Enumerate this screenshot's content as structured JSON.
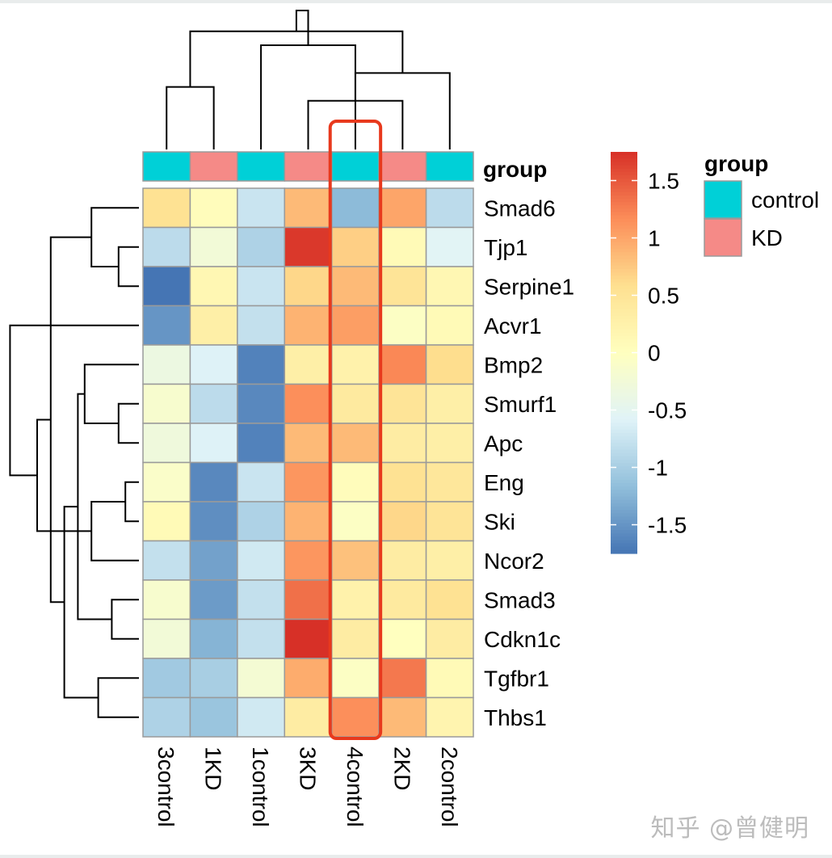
{
  "chart_data": {
    "type": "heatmap",
    "columns": [
      "3control",
      "1KD",
      "1control",
      "3KD",
      "4control",
      "2KD",
      "2control"
    ],
    "rows": [
      "Smad6",
      "Tjp1",
      "Serpine1",
      "Acvr1",
      "Bmp2",
      "Smurf1",
      "Apc",
      "Eng",
      "Ski",
      "Ncor2",
      "Smad3",
      "Cdkn1c",
      "Tgfbr1",
      "Thbs1"
    ],
    "values": [
      [
        0.55,
        0.05,
        -0.75,
        0.85,
        -1.2,
        1.0,
        -0.85
      ],
      [
        -0.85,
        -0.25,
        -0.95,
        1.7,
        0.7,
        0.1,
        -0.55
      ],
      [
        -1.8,
        0.15,
        -0.75,
        0.65,
        0.85,
        0.5,
        0.15
      ],
      [
        -1.5,
        0.3,
        -0.8,
        0.9,
        1.05,
        -0.05,
        0.1
      ],
      [
        -0.35,
        -0.6,
        -1.65,
        0.3,
        0.25,
        1.2,
        0.6
      ],
      [
        -0.15,
        -0.85,
        -1.6,
        1.15,
        0.4,
        0.5,
        0.3
      ],
      [
        -0.3,
        -0.6,
        -1.65,
        0.85,
        0.85,
        0.35,
        0.3
      ],
      [
        -0.1,
        -1.6,
        -0.75,
        1.1,
        0.05,
        0.55,
        0.45
      ],
      [
        0.1,
        -1.55,
        -0.95,
        0.9,
        -0.05,
        0.65,
        0.5
      ],
      [
        -0.8,
        -1.4,
        -0.7,
        1.1,
        0.8,
        0.35,
        0.3
      ],
      [
        -0.15,
        -1.45,
        -0.8,
        1.35,
        0.25,
        0.4,
        0.55
      ],
      [
        -0.25,
        -1.25,
        -0.8,
        1.75,
        0.35,
        0.0,
        0.35
      ],
      [
        -1.05,
        -1.0,
        -0.2,
        0.95,
        -0.05,
        1.3,
        0.1
      ],
      [
        -0.95,
        -1.1,
        -0.7,
        0.35,
        1.15,
        0.85,
        0.2
      ]
    ],
    "annotation": {
      "title": "group",
      "column_groups": [
        "control",
        "KD",
        "control",
        "KD",
        "control",
        "KD",
        "control"
      ]
    },
    "legend_group": {
      "title": "group",
      "items": [
        {
          "label": "control",
          "color": "#00d0d7"
        },
        {
          "label": "KD",
          "color": "#f58a87"
        }
      ]
    },
    "colorbar": {
      "range": [
        -1.75,
        1.75
      ],
      "ticks": [
        1.5,
        1,
        0.5,
        0,
        -0.5,
        -1,
        -1.5
      ],
      "tick_labels": [
        "1.5",
        "1",
        "0.5",
        "0",
        "-0.5",
        "-1",
        "-1.5"
      ],
      "palette": [
        "#4575b4",
        "#91bfdb",
        "#e0f3f8",
        "#ffffbf",
        "#fee090",
        "#fc8d59",
        "#d73027"
      ]
    },
    "highlight_column": "4control",
    "highlight_color": "#e8391d",
    "col_dendrogram": {
      "merges": [
        [
          4,
          6,
          0.35
        ],
        [
          5,
          7,
          0.55
        ],
        [
          1,
          2,
          0.45
        ],
        [
          8,
          3,
          0.75
        ],
        [
          9,
          10,
          0.85
        ],
        [
          11,
          12,
          1.0
        ]
      ]
    },
    "row_dendrogram": {
      "merges": [
        [
          2,
          3,
          0.15
        ],
        [
          6,
          7,
          0.15
        ],
        [
          8,
          9,
          0.1
        ],
        [
          11,
          12,
          0.2
        ],
        [
          13,
          14,
          0.3
        ],
        [
          1,
          15,
          0.35
        ],
        [
          5,
          16,
          0.4
        ],
        [
          17,
          10,
          0.35
        ],
        [
          21,
          18,
          0.45
        ],
        [
          23,
          19,
          0.55
        ],
        [
          24,
          20,
          0.65
        ],
        [
          22,
          25,
          0.75
        ],
        [
          4,
          26,
          0.95
        ]
      ]
    }
  },
  "watermark": "知乎 @曾健明"
}
